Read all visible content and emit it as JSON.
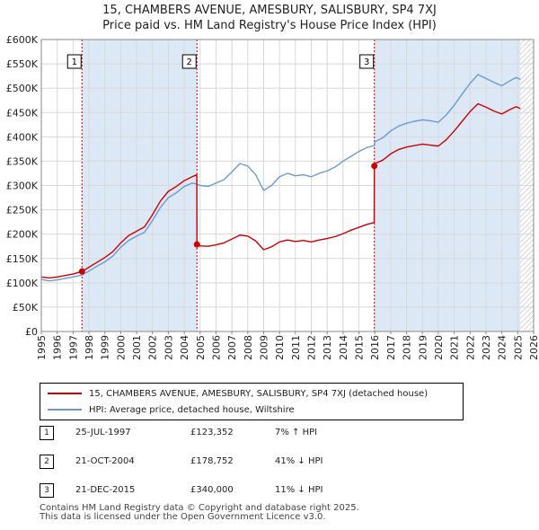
{
  "title_line1": "15, CHAMBERS AVENUE, AMESBURY, SALISBURY, SP4 7XJ",
  "title_line2": "Price paid vs. HM Land Registry's House Price Index (HPI)",
  "colors": {
    "property": "#cc0000",
    "hpi": "#6a9bd1",
    "shade": "#dde8f7",
    "grid": "#d8d8d8"
  },
  "legend": {
    "property_label": "15, CHAMBERS AVENUE, AMESBURY, SALISBURY, SP4 7XJ (detached house)",
    "hpi_label": "HPI: Average price, detached house, Wiltshire"
  },
  "sales": [
    {
      "num": "1",
      "date": "25-JUL-1997",
      "price": "£123,352",
      "hpi": "7% ↑ HPI"
    },
    {
      "num": "2",
      "date": "21-OCT-2004",
      "price": "£178,752",
      "hpi": "41% ↓ HPI"
    },
    {
      "num": "3",
      "date": "21-DEC-2015",
      "price": "£340,000",
      "hpi": "11% ↓ HPI"
    }
  ],
  "footer": {
    "line1": "Contains HM Land Registry data © Copyright and database right 2025.",
    "line2": "This data is licensed under the Open Government Licence v3.0."
  },
  "chart_data": {
    "type": "line",
    "title": "15, CHAMBERS AVENUE, AMESBURY, SALISBURY, SP4 7XJ — Price paid vs. HM Land Registry's House Price Index (HPI)",
    "xlim": [
      1995,
      2026
    ],
    "ylim": [
      0,
      600000
    ],
    "y_ticks": [
      0,
      50000,
      100000,
      150000,
      200000,
      250000,
      300000,
      350000,
      400000,
      450000,
      500000,
      550000,
      600000
    ],
    "y_tick_labels": [
      "£0",
      "£50K",
      "£100K",
      "£150K",
      "£200K",
      "£250K",
      "£300K",
      "£350K",
      "£400K",
      "£450K",
      "£500K",
      "£550K",
      "£600K"
    ],
    "x_ticks": [
      1995,
      1996,
      1997,
      1998,
      1999,
      2000,
      2001,
      2002,
      2003,
      2004,
      2005,
      2006,
      2007,
      2008,
      2009,
      2010,
      2011,
      2012,
      2013,
      2014,
      2015,
      2016,
      2017,
      2018,
      2019,
      2020,
      2021,
      2022,
      2023,
      2024,
      2025,
      2026
    ],
    "x_tick_labels": [
      "1995",
      "1996",
      "1997",
      "1998",
      "1999",
      "2000",
      "2001",
      "2002",
      "2003",
      "2004",
      "2005",
      "2006",
      "2007",
      "2008",
      "2009",
      "2010",
      "2011",
      "2012",
      "2013",
      "2014",
      "2015",
      "2016",
      "2017",
      "2018",
      "2019",
      "2020",
      "2021",
      "2022",
      "2023",
      "2024",
      "2025",
      "2026"
    ],
    "grid": true,
    "shaded_periods": [
      [
        1997.56,
        2004.8
      ],
      [
        2015.97,
        2025.17
      ]
    ],
    "data_end_hatch_from": 2025.17,
    "sale_markers": [
      {
        "label": "1",
        "x": 1997.56,
        "y": 123352
      },
      {
        "label": "2",
        "x": 2004.8,
        "y": 178752
      },
      {
        "label": "3",
        "x": 2015.97,
        "y": 340000
      }
    ],
    "series": [
      {
        "name": "HPI: Average price, detached house, Wiltshire",
        "points": [
          [
            1995.0,
            107000
          ],
          [
            1995.5,
            104000
          ],
          [
            1996.0,
            106000
          ],
          [
            1996.5,
            109000
          ],
          [
            1997.0,
            112000
          ],
          [
            1997.56,
            116000
          ],
          [
            1998.0,
            124000
          ],
          [
            1998.5,
            134000
          ],
          [
            1999.0,
            143000
          ],
          [
            1999.5,
            155000
          ],
          [
            2000.0,
            173000
          ],
          [
            2000.5,
            187000
          ],
          [
            2001.0,
            196000
          ],
          [
            2001.5,
            204000
          ],
          [
            2002.0,
            228000
          ],
          [
            2002.5,
            255000
          ],
          [
            2003.0,
            275000
          ],
          [
            2003.5,
            285000
          ],
          [
            2004.0,
            298000
          ],
          [
            2004.5,
            305000
          ],
          [
            2004.8,
            303000
          ],
          [
            2005.0,
            300000
          ],
          [
            2005.5,
            298000
          ],
          [
            2006.0,
            305000
          ],
          [
            2006.5,
            312000
          ],
          [
            2007.0,
            328000
          ],
          [
            2007.5,
            345000
          ],
          [
            2008.0,
            340000
          ],
          [
            2008.5,
            322000
          ],
          [
            2009.0,
            290000
          ],
          [
            2009.5,
            300000
          ],
          [
            2010.0,
            318000
          ],
          [
            2010.5,
            325000
          ],
          [
            2011.0,
            320000
          ],
          [
            2011.5,
            322000
          ],
          [
            2012.0,
            318000
          ],
          [
            2012.5,
            325000
          ],
          [
            2013.0,
            330000
          ],
          [
            2013.5,
            338000
          ],
          [
            2014.0,
            350000
          ],
          [
            2014.5,
            360000
          ],
          [
            2015.0,
            370000
          ],
          [
            2015.5,
            378000
          ],
          [
            2015.97,
            382000
          ],
          [
            2016.0,
            390000
          ],
          [
            2016.5,
            398000
          ],
          [
            2017.0,
            412000
          ],
          [
            2017.5,
            422000
          ],
          [
            2018.0,
            428000
          ],
          [
            2018.5,
            432000
          ],
          [
            2019.0,
            435000
          ],
          [
            2019.5,
            433000
          ],
          [
            2020.0,
            430000
          ],
          [
            2020.5,
            445000
          ],
          [
            2021.0,
            465000
          ],
          [
            2021.5,
            488000
          ],
          [
            2022.0,
            510000
          ],
          [
            2022.5,
            528000
          ],
          [
            2023.0,
            520000
          ],
          [
            2023.5,
            512000
          ],
          [
            2024.0,
            505000
          ],
          [
            2024.5,
            515000
          ],
          [
            2024.9,
            522000
          ],
          [
            2025.17,
            518000
          ]
        ]
      },
      {
        "name": "15, CHAMBERS AVENUE, AMESBURY, SALISBURY, SP4 7XJ (detached house)",
        "points": [
          [
            1995.0,
            112000
          ],
          [
            1995.5,
            110000
          ],
          [
            1996.0,
            112000
          ],
          [
            1996.5,
            115000
          ],
          [
            1997.0,
            118000
          ],
          [
            1997.56,
            123352
          ],
          [
            1998.0,
            132000
          ],
          [
            1998.5,
            142000
          ],
          [
            1999.0,
            152000
          ],
          [
            1999.5,
            164000
          ],
          [
            2000.0,
            182000
          ],
          [
            2000.5,
            197000
          ],
          [
            2001.0,
            206000
          ],
          [
            2001.5,
            215000
          ],
          [
            2002.0,
            240000
          ],
          [
            2002.5,
            268000
          ],
          [
            2003.0,
            288000
          ],
          [
            2003.5,
            298000
          ],
          [
            2004.0,
            310000
          ],
          [
            2004.5,
            318000
          ],
          [
            2004.79,
            322000
          ],
          [
            2004.8,
            178752
          ],
          [
            2005.0,
            176000
          ],
          [
            2005.5,
            175000
          ],
          [
            2006.0,
            178000
          ],
          [
            2006.5,
            182000
          ],
          [
            2007.0,
            190000
          ],
          [
            2007.5,
            198000
          ],
          [
            2008.0,
            196000
          ],
          [
            2008.5,
            186000
          ],
          [
            2009.0,
            168000
          ],
          [
            2009.5,
            174000
          ],
          [
            2010.0,
            184000
          ],
          [
            2010.5,
            188000
          ],
          [
            2011.0,
            185000
          ],
          [
            2011.5,
            187000
          ],
          [
            2012.0,
            184000
          ],
          [
            2012.5,
            188000
          ],
          [
            2013.0,
            191000
          ],
          [
            2013.5,
            195000
          ],
          [
            2014.0,
            201000
          ],
          [
            2014.5,
            208000
          ],
          [
            2015.0,
            214000
          ],
          [
            2015.5,
            220000
          ],
          [
            2015.96,
            224000
          ],
          [
            2015.97,
            340000
          ],
          [
            2016.0,
            345000
          ],
          [
            2016.5,
            352000
          ],
          [
            2017.0,
            365000
          ],
          [
            2017.5,
            374000
          ],
          [
            2018.0,
            379000
          ],
          [
            2018.5,
            382000
          ],
          [
            2019.0,
            385000
          ],
          [
            2019.5,
            383000
          ],
          [
            2020.0,
            381000
          ],
          [
            2020.5,
            394000
          ],
          [
            2021.0,
            412000
          ],
          [
            2021.5,
            432000
          ],
          [
            2022.0,
            452000
          ],
          [
            2022.5,
            468000
          ],
          [
            2023.0,
            461000
          ],
          [
            2023.5,
            453000
          ],
          [
            2024.0,
            447000
          ],
          [
            2024.5,
            456000
          ],
          [
            2024.9,
            462000
          ],
          [
            2025.17,
            458000
          ]
        ]
      }
    ]
  }
}
